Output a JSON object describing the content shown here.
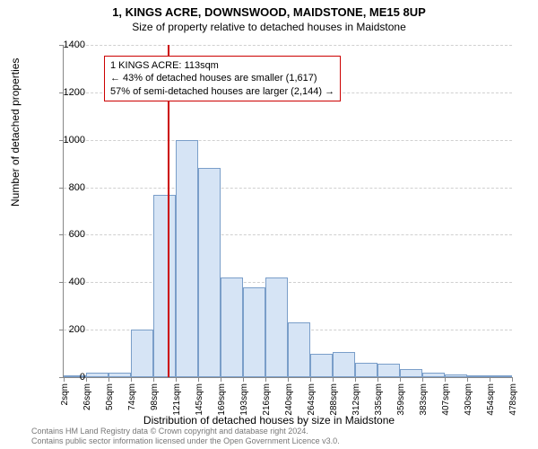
{
  "title": "1, KINGS ACRE, DOWNSWOOD, MAIDSTONE, ME15 8UP",
  "subtitle": "Size of property relative to detached houses in Maidstone",
  "ylabel": "Number of detached properties",
  "xlabel": "Distribution of detached houses by size in Maidstone",
  "footer_line1": "Contains HM Land Registry data © Crown copyright and database right 2024.",
  "footer_line2": "Contains public sector information licensed under the Open Government Licence v3.0.",
  "chart": {
    "type": "histogram",
    "ylim": [
      0,
      1400
    ],
    "ytick_step": 200,
    "bar_fill": "#d6e4f5",
    "bar_border": "#7a9ec9",
    "grid_color": "#d0d0d0",
    "axis_color": "#888888",
    "marker_color": "#cc0000",
    "marker_x_value": 113,
    "x_start": 2,
    "x_bin_width": 24,
    "x_labels": [
      "2sqm",
      "26sqm",
      "50sqm",
      "74sqm",
      "98sqm",
      "121sqm",
      "145sqm",
      "169sqm",
      "193sqm",
      "216sqm",
      "240sqm",
      "264sqm",
      "288sqm",
      "312sqm",
      "335sqm",
      "359sqm",
      "383sqm",
      "407sqm",
      "430sqm",
      "454sqm",
      "478sqm"
    ],
    "values": [
      0,
      18,
      18,
      200,
      770,
      1000,
      880,
      420,
      380,
      420,
      230,
      100,
      105,
      60,
      55,
      35,
      20,
      10,
      8,
      5
    ]
  },
  "annotation": {
    "line1": "1 KINGS ACRE: 113sqm",
    "line2": "← 43% of detached houses are smaller (1,617)",
    "line3": "57% of semi-detached houses are larger (2,144) →"
  }
}
